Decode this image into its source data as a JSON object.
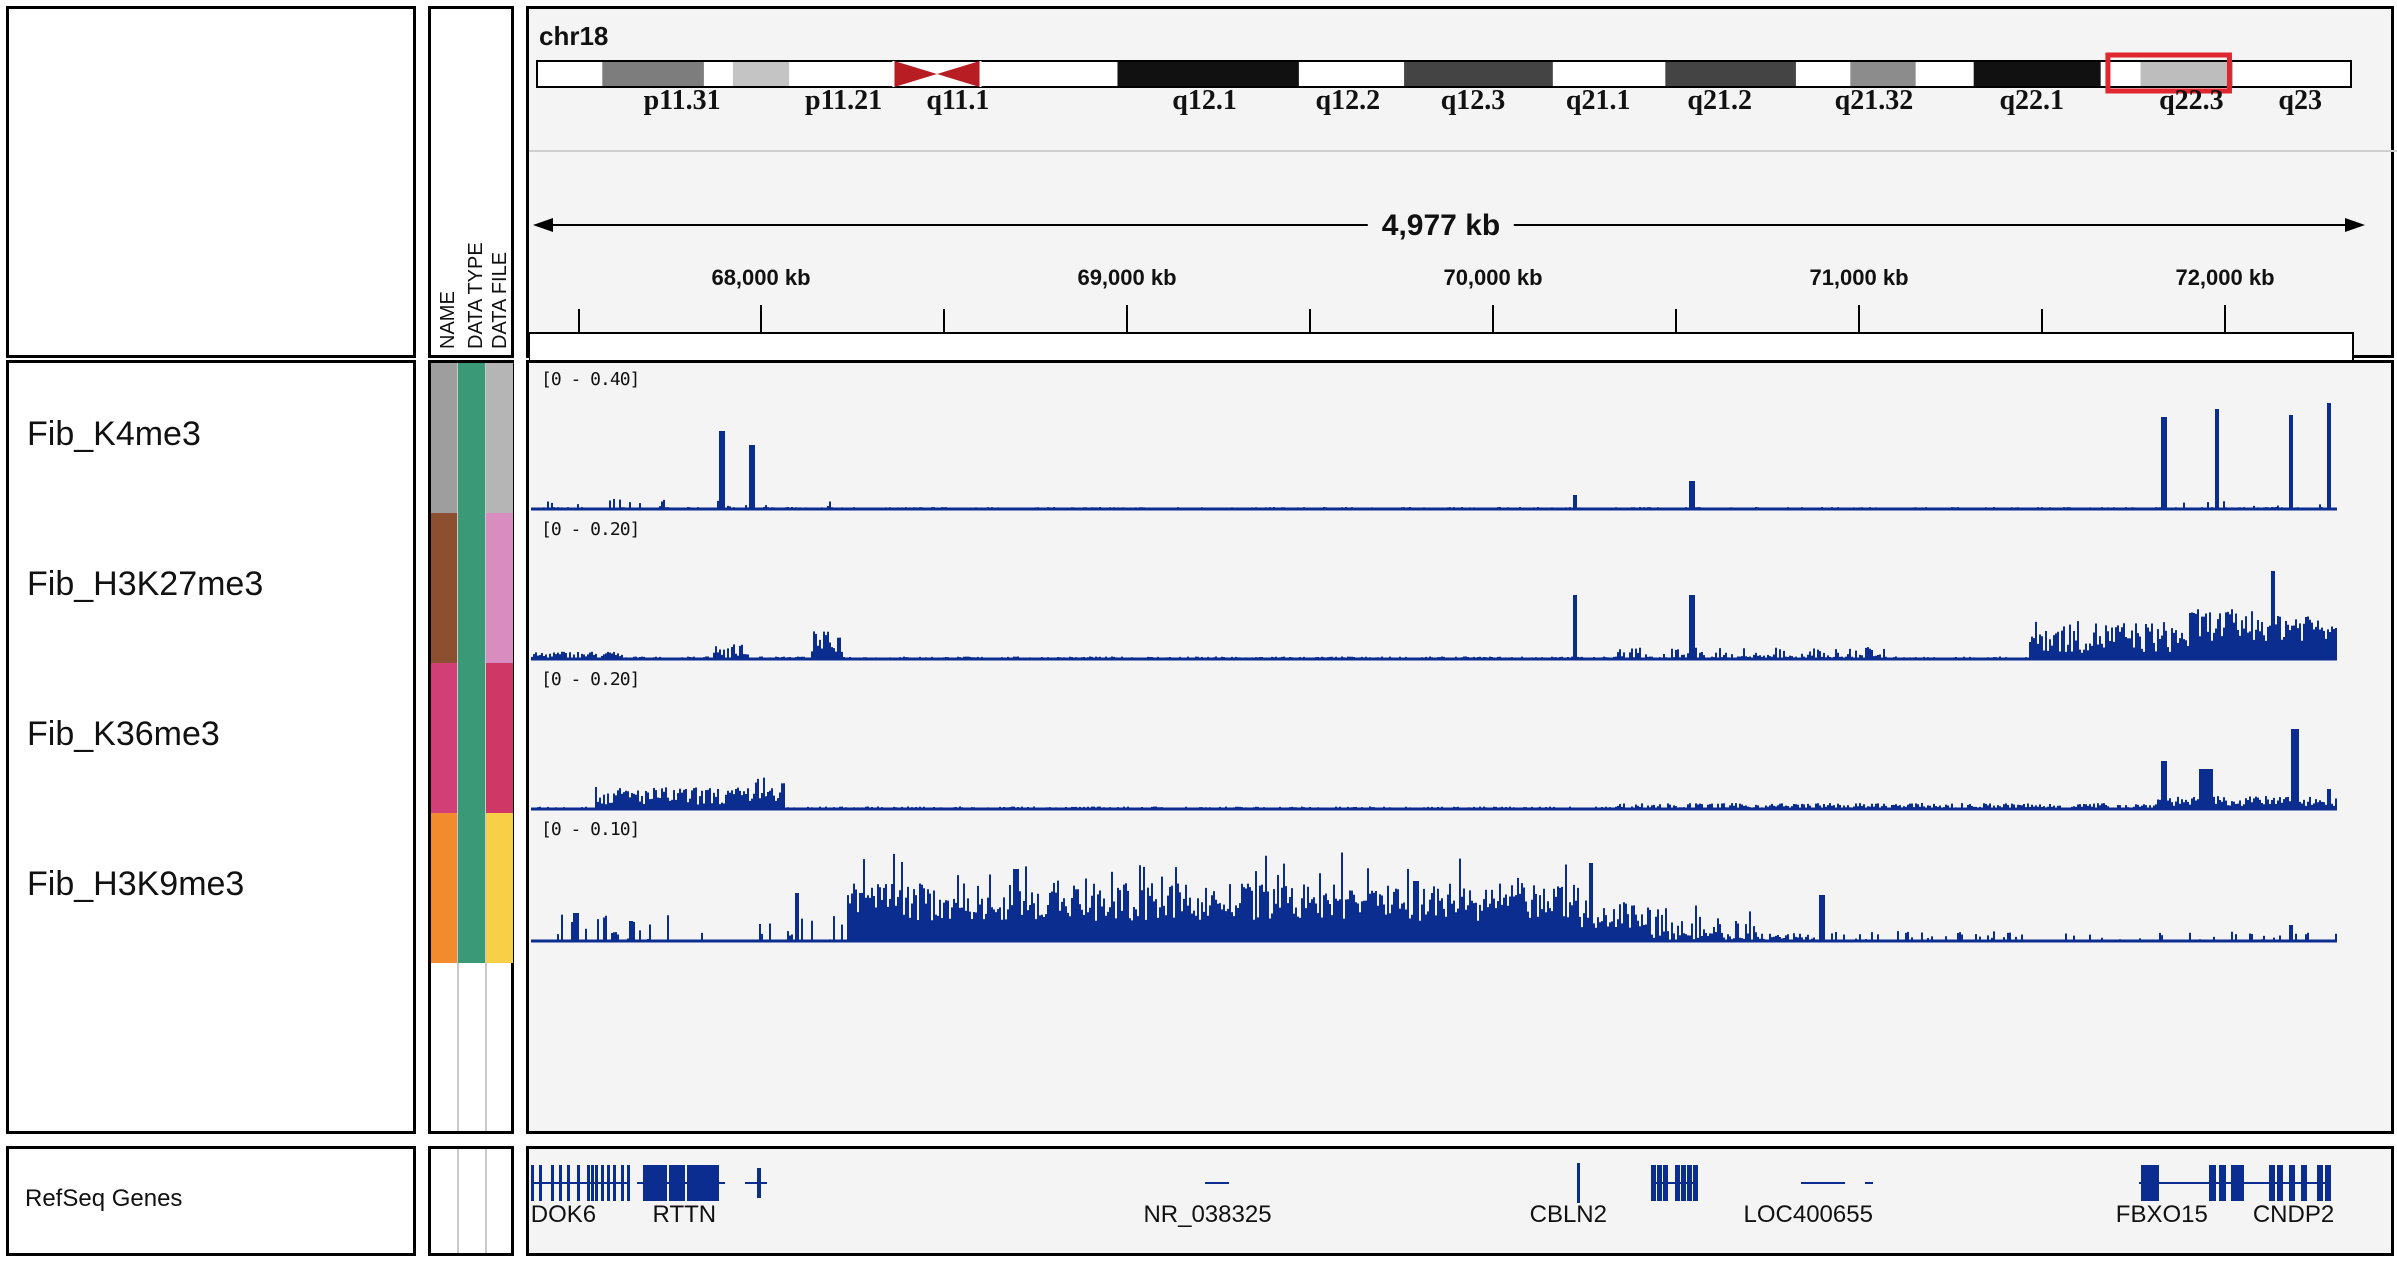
{
  "header": {
    "chromosome": "chr18",
    "span": "4,977 kb",
    "cytobands": [
      {
        "label": "p11.31",
        "pos": 0.08
      },
      {
        "label": "p11.21",
        "pos": 0.169
      },
      {
        "label": "q11.1",
        "pos": 0.232
      },
      {
        "label": "q12.1",
        "pos": 0.368
      },
      {
        "label": "q12.2",
        "pos": 0.447
      },
      {
        "label": "q12.3",
        "pos": 0.516
      },
      {
        "label": "q21.1",
        "pos": 0.585
      },
      {
        "label": "q21.2",
        "pos": 0.652
      },
      {
        "label": "q21.32",
        "pos": 0.737
      },
      {
        "label": "q22.1",
        "pos": 0.824
      },
      {
        "label": "q22.3",
        "pos": 0.912
      },
      {
        "label": "q23",
        "pos": 0.972
      }
    ],
    "ruler_ticks": [
      "68,000 kb",
      "69,000 kb",
      "70,000 kb",
      "71,000 kb",
      "72,000 kb"
    ]
  },
  "attribute_headers": [
    "NAME",
    "DATA TYPE",
    "DATA FILE"
  ],
  "tracks": [
    {
      "name": "Fib_K4me3",
      "range": "[0 - 0.40]",
      "colors": [
        "#9e9e9e",
        "#3a9a78",
        "#b5b5b5"
      ]
    },
    {
      "name": "Fib_H3K27me3",
      "range": "[0 - 0.20]",
      "colors": [
        "#8c4f2f",
        "#3a9a78",
        "#d98cbf"
      ]
    },
    {
      "name": "Fib_K36me3",
      "range": "[0 - 0.20]",
      "colors": [
        "#d23e76",
        "#3a9a78",
        "#cf3767"
      ]
    },
    {
      "name": "Fib_H3K9me3",
      "range": "[0 - 0.10]",
      "colors": [
        "#f28a2e",
        "#3a9a78",
        "#f7d048"
      ]
    }
  ],
  "refseq": {
    "name": "RefSeq Genes",
    "genes": [
      {
        "label": "DOK6",
        "pos": 0.018
      },
      {
        "label": "RTTN",
        "pos": 0.085
      },
      {
        "label": "NR_038325",
        "pos": 0.375
      },
      {
        "label": "CBLN2",
        "pos": 0.575
      },
      {
        "label": "LOC400655",
        "pos": 0.708
      },
      {
        "label": "FBXO15",
        "pos": 0.904
      },
      {
        "label": "CNDP2",
        "pos": 0.977
      }
    ]
  },
  "colors": {
    "signal": "#0b2d8f",
    "ideogram_highlight": "#e0262e",
    "centromere": "#b81d24"
  }
}
